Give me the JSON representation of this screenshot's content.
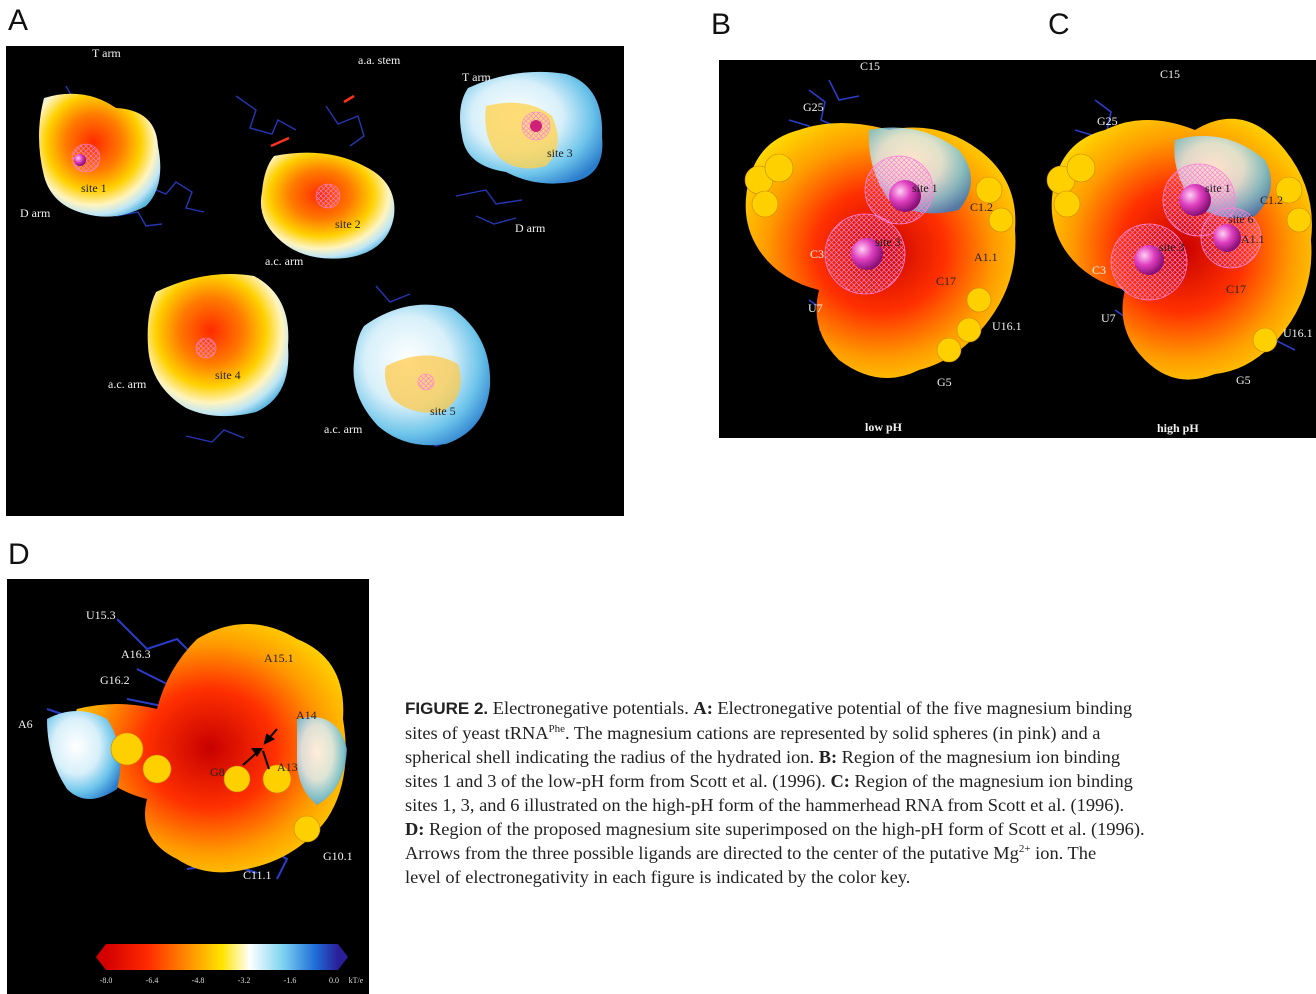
{
  "panels": {
    "A": {
      "letter": "A",
      "labels": {
        "t_arm_left": "T arm",
        "aa_stem": "a.a. stem",
        "t_arm_right": "T arm",
        "d_arm_left": "D arm",
        "d_arm_right": "D arm",
        "site1": "site 1",
        "site2": "site 2",
        "site3": "site 3",
        "site4": "site 4",
        "site5": "site 5",
        "ac_arm_top": "a.c. arm",
        "ac_arm_left": "a.c. arm",
        "ac_arm_right": "a.c. arm"
      }
    },
    "B": {
      "letter": "B",
      "labels": {
        "c15": "C15",
        "g25": "G25",
        "site1": "site 1",
        "c12": "C1.2",
        "site3": "site 3",
        "c3": "C3",
        "a11": "A1.1",
        "c17": "C17",
        "u7": "U7",
        "u161": "U16.1",
        "g5": "G5",
        "ph": "low pH"
      }
    },
    "C": {
      "letter": "C",
      "labels": {
        "c15": "C15",
        "g25": "G25",
        "site1": "site 1",
        "c12": "C1.2",
        "site6": "site 6",
        "a11": "A1.1",
        "site3": "site 3",
        "c3": "C3",
        "c17": "C17",
        "u7": "U7",
        "u161": "U16.1",
        "g5": "G5",
        "ph": "high pH"
      }
    },
    "D": {
      "letter": "D",
      "labels": {
        "u153": "U15.3",
        "a163": "A16.3",
        "a151": "A15.1",
        "g162": "G16.2",
        "a6": "A6",
        "a14": "A14",
        "g8": "G8",
        "a13": "A13",
        "g101": "G10.1",
        "c111": "C11.1"
      },
      "color_key": {
        "ticks": [
          "-8.0",
          "-6.4",
          "-4.8",
          "-3.2",
          "-1.6",
          "0.0"
        ],
        "unit": "kT/e"
      }
    }
  },
  "caption": {
    "figure_label": "FIGURE 2.",
    "s1": " Electronegative potentials. ",
    "a_label": "A:",
    "s2": " Electronegative potential of the five magnesium binding",
    "s3": "sites of yeast tRNA",
    "sup_phe": "Phe",
    "s4": ". The magnesium cations are represented by solid spheres (in pink) and a",
    "s5": "spherical shell indicating the radius of the hydrated ion. ",
    "b_label": "B:",
    "s6": " Region of the magnesium ion binding",
    "s7": "sites 1 and 3 of the low-pH form from Scott et al. (1996). ",
    "c_label": "C:",
    "s8": " Region of the magnesium ion binding",
    "s9": "sites 1, 3, and 6 illustrated on the high-pH form of the hammerhead RNA from Scott et al. (1996).",
    "d_label": "D:",
    "s10": " Region of the proposed magnesium site superimposed on the high-pH form of Scott et al. (1996).",
    "s11": "Arrows from the three possible ligands are directed to the center of the putative Mg",
    "sup_charge": "2+",
    "s12": " ion. The",
    "s13": "level of electronegativity in each figure is indicated by the color key."
  }
}
